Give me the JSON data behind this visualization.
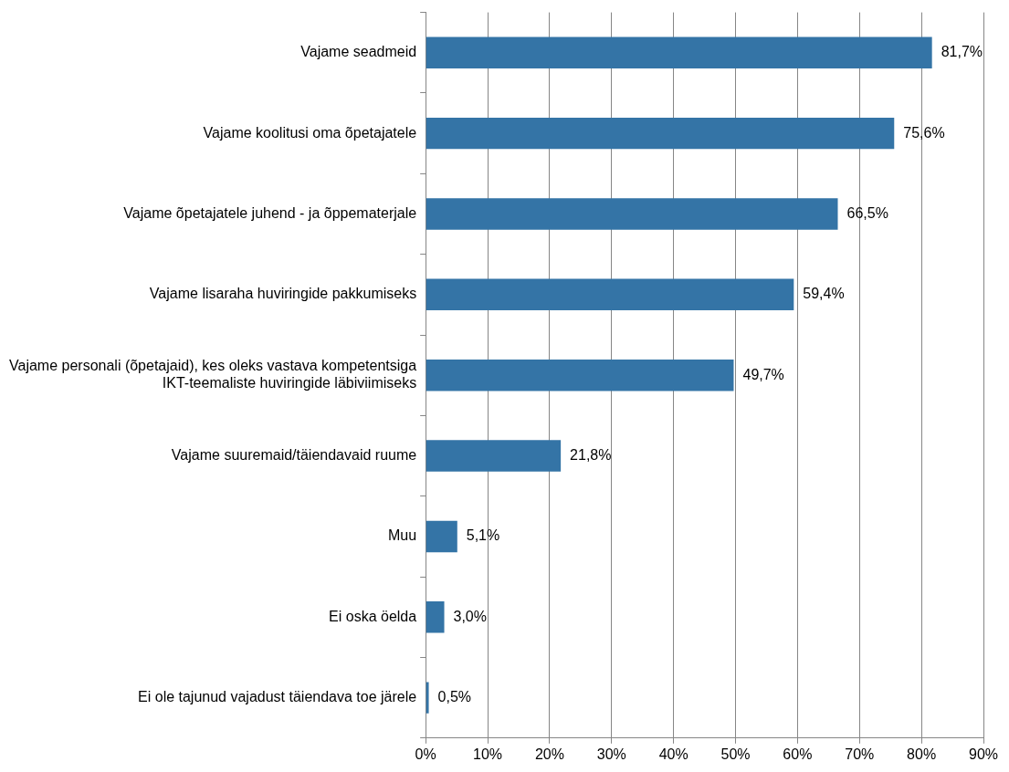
{
  "chart_data": {
    "type": "bar",
    "orientation": "horizontal",
    "categories": [
      "Vajame seadmeid",
      "Vajame koolitusi oma õpetajatele",
      "Vajame õpetajatele juhend - ja õppematerjale",
      "Vajame lisaraha huviringide pakkumiseks",
      "Vajame personali (õpetajaid), kes oleks vastava kompetentsiga IKT-teemaliste huviringide läbiviimiseks",
      "Vajame suuremaid/täiendavaid ruume",
      "Muu",
      "Ei oska öelda",
      "Ei ole tajunud vajadust täiendava toe järele"
    ],
    "values": [
      81.7,
      75.6,
      66.5,
      59.4,
      49.7,
      21.8,
      5.1,
      3.0,
      0.5
    ],
    "value_labels": [
      "81,7%",
      "75,6%",
      "66,5%",
      "59,4%",
      "49,7%",
      "21,8%",
      "5,1%",
      "3,0%",
      "0,5%"
    ],
    "color": "#3474a6",
    "xlim": [
      0,
      90
    ],
    "xticks": [
      {
        "value": 0,
        "label": "0%"
      },
      {
        "value": 10,
        "label": "10%"
      },
      {
        "value": 20,
        "label": "20%"
      },
      {
        "value": 30,
        "label": "30%"
      },
      {
        "value": 40,
        "label": "40%"
      },
      {
        "value": 50,
        "label": "50%"
      },
      {
        "value": 60,
        "label": "60%"
      },
      {
        "value": 70,
        "label": "70%"
      },
      {
        "value": 80,
        "label": "80%"
      },
      {
        "value": 90,
        "label": "90%"
      }
    ],
    "grid": "x",
    "legend": false
  }
}
